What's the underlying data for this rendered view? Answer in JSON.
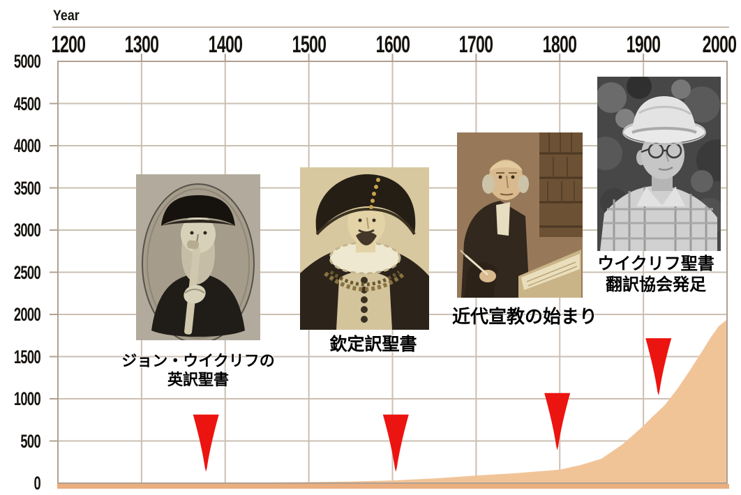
{
  "chart_data": {
    "type": "area",
    "title": "",
    "xlabel": "Year",
    "ylabel": "",
    "xlim": [
      1200,
      2000
    ],
    "ylim": [
      0,
      5000
    ],
    "x_ticks": [
      1200,
      1300,
      1400,
      1500,
      1600,
      1700,
      1800,
      1900,
      2000
    ],
    "y_ticks": [
      0,
      500,
      1000,
      1500,
      2000,
      2500,
      3000,
      3500,
      4000,
      4500,
      5000
    ],
    "grid": true,
    "legend": "none",
    "series": [
      {
        "name": "area",
        "x": [
          1200,
          1300,
          1400,
          1450,
          1500,
          1550,
          1600,
          1650,
          1700,
          1750,
          1800,
          1825,
          1850,
          1875,
          1890,
          1900,
          1910,
          1925,
          1940,
          1955,
          1970,
          1980,
          1990,
          2000
        ],
        "y": [
          3,
          4,
          6,
          8,
          12,
          20,
          32,
          55,
          90,
          120,
          160,
          215,
          290,
          460,
          590,
          680,
          780,
          920,
          1110,
          1330,
          1560,
          1720,
          1860,
          1940
        ]
      }
    ],
    "markers": [
      {
        "year": 1377,
        "value": 135
      },
      {
        "year": 1604,
        "value": 135
      },
      {
        "year": 1797,
        "value": 390
      },
      {
        "year": 1918,
        "value": 1040
      }
    ],
    "fill_color": "#f1c498",
    "axis_band_color": "#eaae7f",
    "grid_color": "#cbbfb2",
    "border_color": "#b0a092",
    "marker_color": "#ec1410"
  },
  "events": [
    {
      "arrow_year": 1377,
      "caption_lines": [
        "ジョン・ウイクリフの",
        "英訳聖書"
      ]
    },
    {
      "arrow_year": 1604,
      "caption_lines": [
        "欽定訳聖書"
      ]
    },
    {
      "arrow_year": 1797,
      "caption_lines": [
        "近代宣教の始まり"
      ]
    },
    {
      "arrow_year": 1918,
      "caption_lines": [
        "ウイクリフ聖書",
        "翻訳協会発足"
      ]
    }
  ]
}
